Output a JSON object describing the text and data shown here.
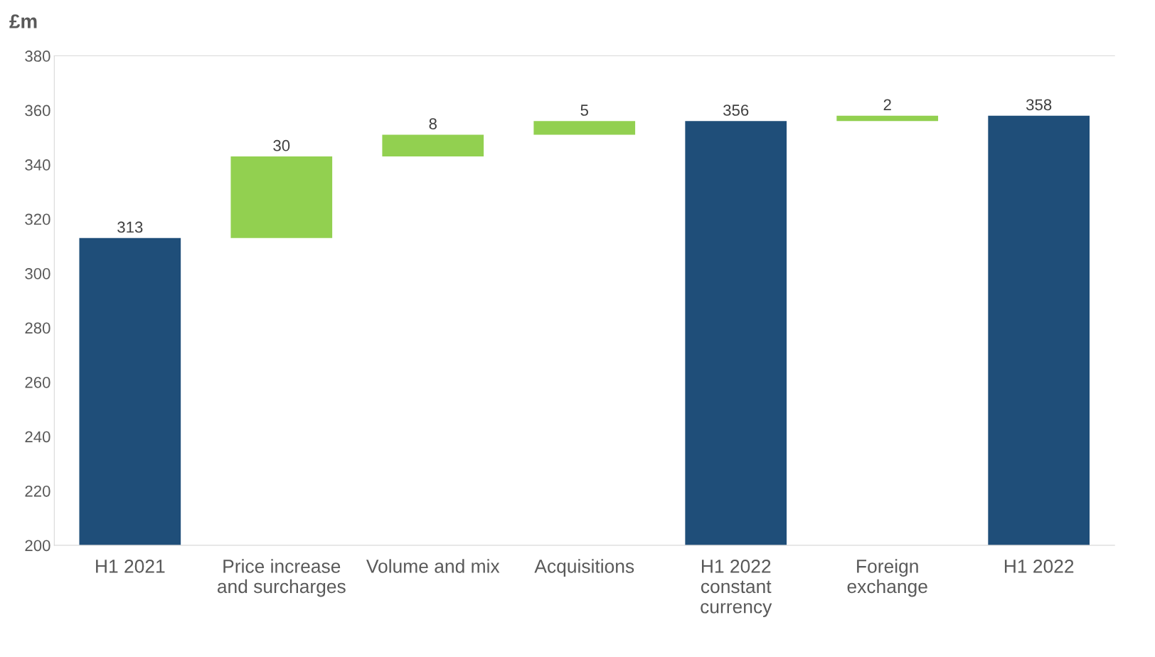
{
  "chart_data": {
    "type": "bar",
    "ylabel": "£m",
    "categories": [
      "H1 2021",
      "Price increase and surcharges",
      "Volume and mix",
      "Acquisitions",
      "H1 2022 constant currency",
      "Foreign exchange",
      "H1 2022"
    ],
    "values": [
      313,
      30,
      8,
      5,
      356,
      2,
      358
    ],
    "base": [
      null,
      313,
      343,
      351,
      null,
      356,
      null
    ],
    "colors": [
      "#1f4e79",
      "#92d050",
      "#92d050",
      "#92d050",
      "#1f4e79",
      "#92d050",
      "#1f4e79"
    ],
    "ylim": [
      200,
      380
    ],
    "yticks": [
      200,
      220,
      240,
      260,
      280,
      300,
      320,
      340,
      360,
      380
    ],
    "data_labels": true,
    "grid": false,
    "legend": false
  }
}
